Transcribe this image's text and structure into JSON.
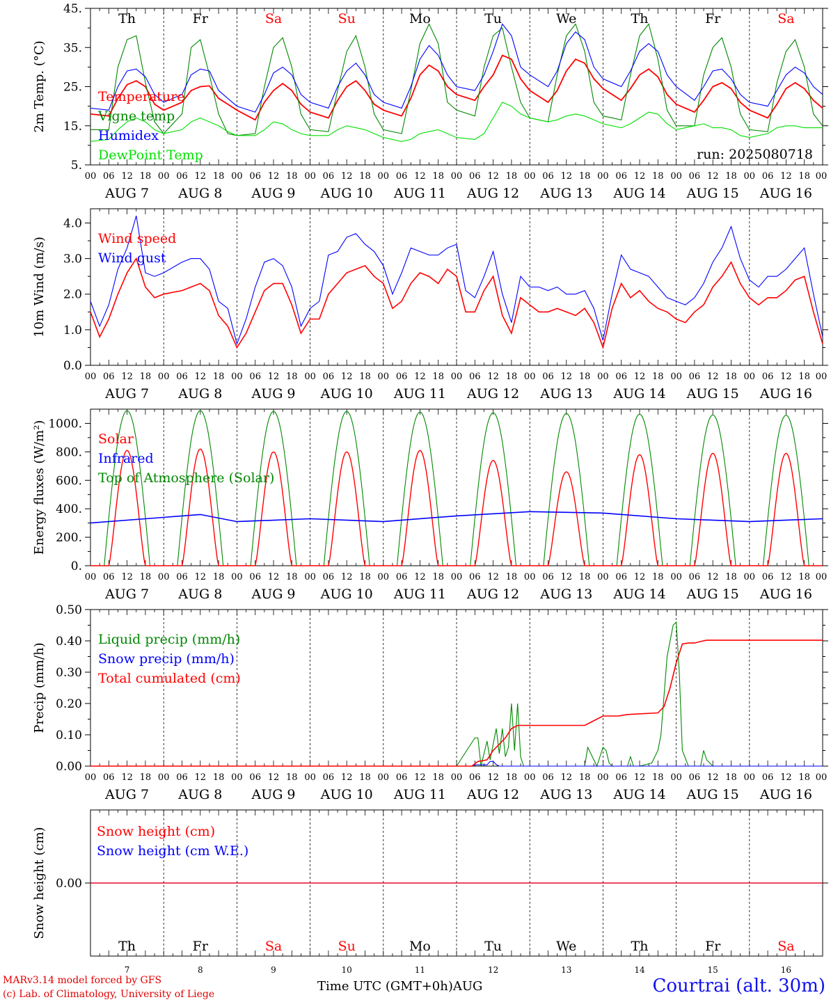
{
  "chart_data": [
    {
      "type": "line",
      "panel": "temperature",
      "ylabel": "2m Temp. (°C)",
      "ylim": [
        5,
        45
      ],
      "yticks": [
        "5.",
        "15.",
        "25.",
        "35.",
        "45."
      ],
      "ytick_values": [
        5,
        15,
        25,
        35,
        45
      ],
      "annotation": "run: 2025080718",
      "x_hours": [
        0,
        6,
        9,
        12,
        15,
        18,
        21,
        24,
        30,
        33,
        36,
        39,
        42,
        45,
        48,
        54,
        57,
        60,
        63,
        66,
        69,
        72,
        78,
        81,
        84,
        87,
        90,
        93,
        96,
        102,
        105,
        108,
        111,
        114,
        117,
        120,
        126,
        129,
        132,
        135,
        138,
        141,
        144,
        150,
        153,
        156,
        159,
        162,
        165,
        168,
        174,
        177,
        180,
        183,
        186,
        189,
        192,
        198,
        201,
        204,
        207,
        210,
        213,
        216,
        222,
        225,
        228,
        231,
        234,
        237,
        240
      ],
      "series": [
        {
          "name": "Temperature",
          "color": "#ff0000",
          "values": [
            18,
            17.5,
            22,
            25.5,
            26.5,
            25,
            20.5,
            19,
            21,
            24,
            25,
            25.2,
            22,
            20.5,
            19,
            16.5,
            21,
            24,
            25.8,
            24,
            20.5,
            18.5,
            17,
            21.5,
            25,
            26.5,
            24,
            20.5,
            19,
            17.5,
            22,
            28,
            30.5,
            29,
            25,
            23,
            21.5,
            25,
            28,
            33,
            32,
            27,
            24,
            21,
            24,
            29,
            32,
            31,
            27,
            24.5,
            21.5,
            24.5,
            28,
            29.5,
            27.5,
            23,
            20.5,
            18.5,
            21.5,
            25,
            26,
            24.5,
            21,
            19,
            17,
            20.5,
            24.5,
            26,
            24.5,
            21.5,
            19.5
          ]
        },
        {
          "name": "Vigne temp",
          "color": "#008800",
          "values": [
            14,
            14,
            30,
            37,
            38,
            26,
            16,
            13,
            18,
            35,
            37,
            28,
            18,
            13,
            12.5,
            13,
            25,
            35,
            37.5,
            30,
            18,
            14,
            13.5,
            24,
            34,
            38,
            30,
            18,
            14,
            13,
            24,
            36,
            41,
            36,
            21,
            19,
            17.5,
            30,
            38,
            40,
            30,
            21,
            17,
            16,
            28,
            38,
            41,
            34,
            21,
            17.5,
            16.5,
            28,
            38,
            41,
            32,
            19,
            15,
            15,
            28,
            35,
            37.5,
            30,
            18,
            14,
            13.5,
            26,
            34,
            37,
            30,
            18,
            15
          ]
        },
        {
          "name": "Humidex",
          "color": "#0000ff",
          "values": [
            19.5,
            19,
            25,
            29,
            29.5,
            27.5,
            23,
            21,
            23,
            28,
            29.5,
            29,
            24,
            22,
            20,
            18.5,
            23,
            28.5,
            30,
            28,
            23,
            21,
            19.5,
            25,
            29,
            31,
            28,
            23,
            21,
            19.5,
            25,
            32,
            35.5,
            33,
            28,
            25,
            24,
            28,
            34,
            41,
            38,
            30,
            28,
            25,
            29,
            36,
            39,
            37,
            30,
            27,
            25,
            29,
            34,
            36,
            34,
            28,
            25,
            21.5,
            25,
            29,
            29.5,
            27,
            23,
            21,
            20,
            24,
            28,
            30,
            28.5,
            25,
            23
          ]
        },
        {
          "name": "DewPoint Temp",
          "color": "#00e000",
          "values": [
            11,
            11.5,
            14,
            16,
            17,
            16,
            14,
            13,
            14,
            16,
            17,
            16,
            15,
            13.5,
            12.5,
            12.5,
            14,
            16,
            15.5,
            14,
            13,
            12.5,
            12.5,
            14,
            15,
            14.5,
            14,
            13,
            12,
            11,
            11.5,
            13,
            13.5,
            14,
            13,
            12,
            11.5,
            13,
            17,
            21,
            20,
            18,
            17,
            16,
            16.5,
            17.5,
            18,
            17.5,
            16.5,
            15.5,
            14.5,
            15.5,
            17,
            18.5,
            18,
            15.5,
            14,
            15,
            15.5,
            14.5,
            14.5,
            14,
            12.5,
            12,
            13,
            14.5,
            15,
            15,
            14.5,
            14.5,
            14.5
          ]
        }
      ]
    },
    {
      "type": "line",
      "panel": "wind",
      "ylabel": "10m Wind (m/s)",
      "ylim": [
        0,
        4.4
      ],
      "yticks": [
        "0.0",
        "1.0",
        "2.0",
        "3.0",
        "4.0"
      ],
      "ytick_values": [
        0,
        1,
        2,
        3,
        4
      ],
      "x_hours": [
        0,
        3,
        6,
        9,
        12,
        15,
        18,
        21,
        24,
        30,
        33,
        36,
        39,
        42,
        45,
        48,
        51,
        54,
        57,
        60,
        63,
        66,
        69,
        72,
        75,
        78,
        81,
        84,
        87,
        90,
        93,
        96,
        99,
        102,
        105,
        108,
        111,
        114,
        117,
        120,
        123,
        126,
        129,
        132,
        135,
        138,
        141,
        144,
        147,
        150,
        153,
        156,
        159,
        162,
        165,
        168,
        171,
        174,
        177,
        180,
        183,
        186,
        189,
        192,
        195,
        198,
        201,
        204,
        207,
        210,
        213,
        216,
        219,
        222,
        225,
        228,
        231,
        234,
        237,
        240
      ],
      "series": [
        {
          "name": "Wind speed",
          "color": "#ff0000",
          "values": [
            1.5,
            0.8,
            1.3,
            2.0,
            2.6,
            3.0,
            2.2,
            1.9,
            2.0,
            2.1,
            2.2,
            2.3,
            2.1,
            1.4,
            1.1,
            0.5,
            0.9,
            1.5,
            2.1,
            2.3,
            2.3,
            1.7,
            0.9,
            1.3,
            1.3,
            2.0,
            2.3,
            2.6,
            2.7,
            2.8,
            2.5,
            2.3,
            1.6,
            1.8,
            2.3,
            2.6,
            2.5,
            2.3,
            2.7,
            2.5,
            1.5,
            1.5,
            2.1,
            2.5,
            1.4,
            0.9,
            1.9,
            1.7,
            1.5,
            1.5,
            1.6,
            1.5,
            1.4,
            1.6,
            1.2,
            0.5,
            1.6,
            2.3,
            1.9,
            2.1,
            1.8,
            1.6,
            1.5,
            1.3,
            1.2,
            1.5,
            1.7,
            2.2,
            2.5,
            2.9,
            2.3,
            1.9,
            1.7,
            1.9,
            1.9,
            2.1,
            2.4,
            2.5,
            1.5,
            0.6
          ]
        },
        {
          "name": "Wind gust",
          "color": "#0000ff",
          "values": [
            1.8,
            1.1,
            1.7,
            2.7,
            3.3,
            4.2,
            2.6,
            2.5,
            2.6,
            2.9,
            3.0,
            3.0,
            2.7,
            1.8,
            1.6,
            0.6,
            1.3,
            2.2,
            2.9,
            3.0,
            2.8,
            2.2,
            1.1,
            1.6,
            1.8,
            3.1,
            3.2,
            3.6,
            3.7,
            3.4,
            3.2,
            2.8,
            2.0,
            2.6,
            3.3,
            3.2,
            3.1,
            3.1,
            3.3,
            3.4,
            2.1,
            1.9,
            2.5,
            3.2,
            2.0,
            1.2,
            2.5,
            2.2,
            2.2,
            2.1,
            2.2,
            2.0,
            2.0,
            2.1,
            1.6,
            0.7,
            2.0,
            3.1,
            2.7,
            2.6,
            2.5,
            2.2,
            1.9,
            1.8,
            1.7,
            1.9,
            2.3,
            2.9,
            3.3,
            3.9,
            3.0,
            2.4,
            2.2,
            2.5,
            2.5,
            2.7,
            3.0,
            3.3,
            2.0,
            0.8
          ]
        }
      ]
    },
    {
      "type": "line",
      "panel": "energy",
      "ylabel": "Energy fluxes (W/m²)",
      "ylim": [
        0,
        1100
      ],
      "yticks": [
        "0.",
        "200.",
        "400.",
        "600.",
        "800.",
        "1000."
      ],
      "ytick_values": [
        0,
        200,
        400,
        600,
        800,
        1000
      ],
      "day_curves": {
        "daylight_start_hour": 4.5,
        "daylight_end_hour": 19.5,
        "top_of_atmosphere_peaks": [
          1090,
          1090,
          1085,
          1085,
          1080,
          1075,
          1070,
          1065,
          1060,
          1058
        ],
        "solar_peaks": [
          810,
          820,
          800,
          800,
          810,
          740,
          660,
          780,
          790,
          790
        ]
      },
      "infrared_hours": [
        0,
        24,
        36,
        48,
        72,
        96,
        120,
        144,
        168,
        192,
        216,
        240
      ],
      "infrared_values": [
        300,
        340,
        360,
        310,
        330,
        310,
        350,
        380,
        370,
        330,
        310,
        330
      ],
      "series": [
        {
          "name": "Solar",
          "color": "#ff0000"
        },
        {
          "name": "Infrared",
          "color": "#0000ff"
        },
        {
          "name": "Top of Atmosphere (Solar)",
          "color": "#008800"
        }
      ]
    },
    {
      "type": "line",
      "panel": "precip",
      "ylabel": "Precip (mm/h)",
      "ylim": [
        0,
        0.5
      ],
      "yticks": [
        "0.00",
        "0.10",
        "0.20",
        "0.30",
        "0.40",
        "0.50"
      ],
      "ytick_values": [
        0,
        0.1,
        0.2,
        0.3,
        0.4,
        0.5
      ],
      "series": [
        {
          "name": "Liquid precip (mm/h)",
          "color": "#008800",
          "x": [
            0,
            120,
            126,
            127,
            128,
            130,
            131,
            133,
            134,
            135,
            136,
            137,
            138,
            139,
            140,
            141,
            142,
            143,
            144,
            162,
            163,
            164,
            166,
            168,
            169,
            170,
            171,
            176,
            177,
            178,
            180,
            184,
            186,
            187,
            189,
            191,
            192,
            193,
            194,
            196,
            198,
            200,
            201,
            202,
            204,
            240
          ],
          "values": [
            0,
            0,
            0.09,
            0.09,
            0,
            0.08,
            0.02,
            0.12,
            0.04,
            0.12,
            0.03,
            0.06,
            0.2,
            0.05,
            0.2,
            0.03,
            0,
            0,
            0,
            0,
            0.06,
            0.04,
            0,
            0.06,
            0.05,
            0.01,
            0,
            0,
            0.03,
            0,
            0,
            0.01,
            0.05,
            0.1,
            0.35,
            0.45,
            0.46,
            0.3,
            0.05,
            0,
            0,
            0,
            0.05,
            0.02,
            0,
            0
          ]
        },
        {
          "name": "Snow precip (mm/h)",
          "color": "#0000ff",
          "x": [
            0,
            125,
            126,
            130,
            131,
            132,
            133,
            134,
            240
          ],
          "values": [
            0,
            0,
            0.004,
            0.004,
            0.015,
            0.015,
            0.005,
            0,
            0
          ]
        },
        {
          "name": "Total cumulated (cm)",
          "color": "#ff0000",
          "x": [
            0,
            125,
            127,
            130,
            132,
            134,
            136,
            138,
            140,
            142,
            144,
            162,
            164,
            166,
            168,
            170,
            173,
            176,
            186,
            188,
            190,
            192,
            194,
            196,
            198,
            200,
            202,
            204,
            240
          ],
          "values": [
            0,
            0,
            0.015,
            0.02,
            0.05,
            0.07,
            0.09,
            0.12,
            0.13,
            0.13,
            0.13,
            0.13,
            0.14,
            0.15,
            0.16,
            0.16,
            0.16,
            0.165,
            0.17,
            0.19,
            0.25,
            0.33,
            0.39,
            0.393,
            0.393,
            0.398,
            0.402,
            0.402,
            0.402
          ]
        }
      ]
    },
    {
      "type": "line",
      "panel": "snow",
      "ylabel": "Snow height (cm)",
      "ylim": [
        -1,
        1
      ],
      "yticks": [
        "0.00"
      ],
      "ytick_values": [
        0
      ],
      "series": [
        {
          "name": "Snow height (cm)",
          "color": "#ff0000",
          "x": [
            0,
            240
          ],
          "values": [
            0,
            0
          ]
        },
        {
          "name": "Snow height (cm W.E.)",
          "color": "#0000ff",
          "x": [
            0,
            240
          ],
          "values": [
            0,
            0
          ]
        }
      ]
    }
  ],
  "x_axis": {
    "hour_ticks": [
      "00",
      "06",
      "12",
      "18"
    ],
    "final_tick": "00",
    "date_labels": [
      "AUG  7",
      "AUG  8",
      "AUG  9",
      "AUG 10",
      "AUG 11",
      "AUG 12",
      "AUG 13",
      "AUG 14",
      "AUG 15",
      "AUG 16"
    ],
    "weekdays": [
      "Th",
      "Fr",
      "Sa",
      "Su",
      "Mo",
      "Tu",
      "We",
      "Th",
      "Fr",
      "Sa"
    ],
    "weekend": [
      false,
      false,
      true,
      true,
      false,
      false,
      false,
      false,
      false,
      true
    ],
    "day_numbers": [
      "7",
      "8",
      "9",
      "10",
      "11",
      "12",
      "13",
      "14",
      "15",
      "16"
    ],
    "title": "Time UTC (GMT+0h)AUG"
  },
  "footer": {
    "credit_line1": "MARv3.14 model forced by GFS",
    "credit_line2": "(c) Lab. of Climatology, University of Liege",
    "station": "Courtrai (alt. 30m)"
  },
  "colors": {
    "red": "#ff0000",
    "green": "#008800",
    "blue": "#0000ff",
    "light_green": "#00e000"
  }
}
